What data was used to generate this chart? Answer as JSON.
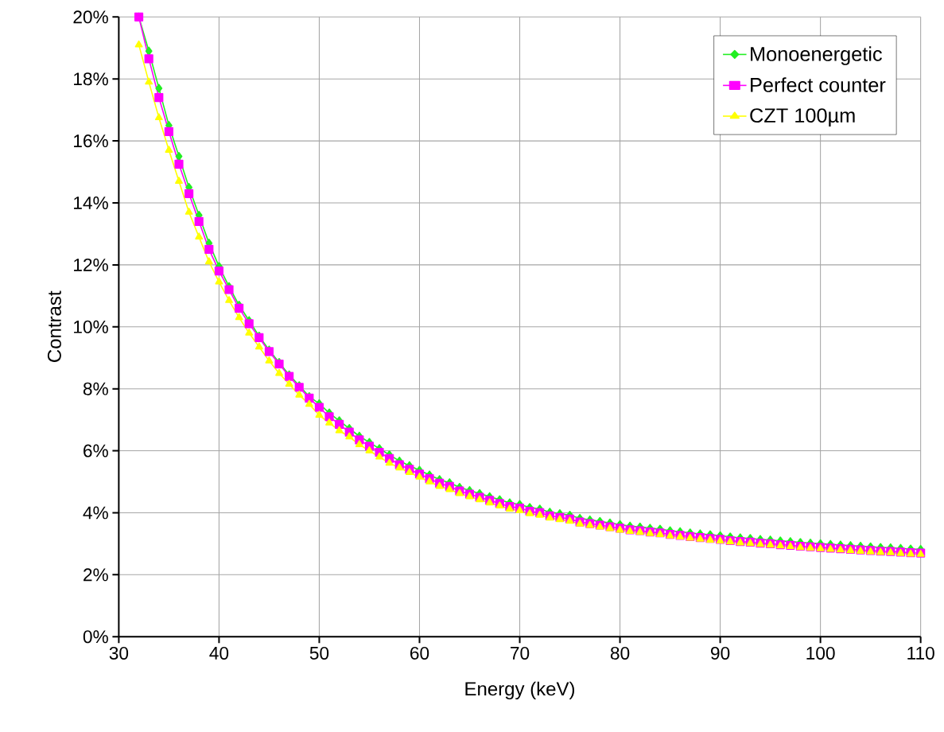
{
  "chart_data": {
    "type": "line",
    "xlabel": "Energy (keV)",
    "ylabel": "Contrast",
    "x": [
      32,
      33,
      34,
      35,
      36,
      37,
      38,
      39,
      40,
      41,
      42,
      43,
      44,
      45,
      46,
      47,
      48,
      49,
      50,
      51,
      52,
      53,
      54,
      55,
      56,
      57,
      58,
      59,
      60,
      61,
      62,
      63,
      64,
      65,
      66,
      67,
      68,
      69,
      70,
      71,
      72,
      73,
      74,
      75,
      76,
      77,
      78,
      79,
      80,
      81,
      82,
      83,
      84,
      85,
      86,
      87,
      88,
      89,
      90,
      91,
      92,
      93,
      94,
      95,
      96,
      97,
      98,
      99,
      100,
      101,
      102,
      103,
      104,
      105,
      106,
      107,
      108,
      109,
      110
    ],
    "series": [
      {
        "name": "Monoenergetic",
        "color": "#22ee22",
        "marker": "diamond",
        "values": [
          20.0,
          18.9,
          17.7,
          16.5,
          15.5,
          14.5,
          13.6,
          12.7,
          11.95,
          11.3,
          10.7,
          10.2,
          9.7,
          9.25,
          8.85,
          8.45,
          8.1,
          7.75,
          7.52,
          7.22,
          6.97,
          6.72,
          6.47,
          6.27,
          6.07,
          5.87,
          5.67,
          5.52,
          5.37,
          5.22,
          5.07,
          4.97,
          4.82,
          4.72,
          4.62,
          4.52,
          4.42,
          4.32,
          4.27,
          4.17,
          4.12,
          4.02,
          3.97,
          3.92,
          3.82,
          3.77,
          3.72,
          3.67,
          3.62,
          3.57,
          3.54,
          3.5,
          3.47,
          3.42,
          3.39,
          3.35,
          3.32,
          3.29,
          3.26,
          3.22,
          3.19,
          3.17,
          3.14,
          3.12,
          3.09,
          3.07,
          3.04,
          3.02,
          3.0,
          2.98,
          2.96,
          2.94,
          2.92,
          2.9,
          2.88,
          2.87,
          2.85,
          2.83,
          2.82
        ]
      },
      {
        "name": "Perfect counter",
        "color": "#ff00ff",
        "marker": "square",
        "values": [
          20.0,
          18.65,
          17.4,
          16.3,
          15.25,
          14.3,
          13.4,
          12.5,
          11.8,
          11.2,
          10.6,
          10.1,
          9.65,
          9.2,
          8.8,
          8.4,
          8.05,
          7.7,
          7.4,
          7.1,
          6.85,
          6.6,
          6.35,
          6.15,
          5.95,
          5.75,
          5.55,
          5.4,
          5.25,
          5.1,
          4.95,
          4.85,
          4.7,
          4.6,
          4.5,
          4.4,
          4.3,
          4.2,
          4.15,
          4.05,
          4.0,
          3.9,
          3.85,
          3.8,
          3.7,
          3.65,
          3.6,
          3.55,
          3.5,
          3.45,
          3.42,
          3.38,
          3.35,
          3.3,
          3.27,
          3.23,
          3.2,
          3.17,
          3.14,
          3.1,
          3.07,
          3.05,
          3.02,
          3.0,
          2.97,
          2.95,
          2.92,
          2.9,
          2.88,
          2.86,
          2.84,
          2.82,
          2.8,
          2.78,
          2.76,
          2.75,
          2.73,
          2.71,
          2.7
        ]
      },
      {
        "name": "CZT 100µm",
        "color": "#ffff00",
        "marker": "triangle",
        "values": [
          19.1,
          17.9,
          16.75,
          15.7,
          14.7,
          13.7,
          12.9,
          12.1,
          11.45,
          10.85,
          10.3,
          9.8,
          9.35,
          8.9,
          8.5,
          8.15,
          7.8,
          7.5,
          7.15,
          6.9,
          6.65,
          6.45,
          6.2,
          6.0,
          5.8,
          5.6,
          5.45,
          5.3,
          5.15,
          5.0,
          4.85,
          4.75,
          4.62,
          4.52,
          4.42,
          4.32,
          4.22,
          4.12,
          4.07,
          3.97,
          3.92,
          3.83,
          3.78,
          3.73,
          3.64,
          3.59,
          3.54,
          3.49,
          3.44,
          3.4,
          3.37,
          3.33,
          3.3,
          3.25,
          3.22,
          3.18,
          3.15,
          3.12,
          3.09,
          3.06,
          3.03,
          3.01,
          2.98,
          2.96,
          2.93,
          2.91,
          2.88,
          2.86,
          2.84,
          2.82,
          2.8,
          2.78,
          2.76,
          2.74,
          2.72,
          2.71,
          2.69,
          2.67,
          2.66
        ]
      }
    ],
    "xlim": [
      30,
      110
    ],
    "ylim": [
      0,
      20
    ],
    "xticks": [
      30,
      40,
      50,
      60,
      70,
      80,
      90,
      100,
      110
    ],
    "yticks": [
      {
        "value": 0,
        "label": "0%"
      },
      {
        "value": 2,
        "label": "2%"
      },
      {
        "value": 4,
        "label": "4%"
      },
      {
        "value": 6,
        "label": "6%"
      },
      {
        "value": 8,
        "label": "8%"
      },
      {
        "value": 10,
        "label": "10%"
      },
      {
        "value": 12,
        "label": "12%"
      },
      {
        "value": 14,
        "label": "14%"
      },
      {
        "value": 16,
        "label": "16%"
      },
      {
        "value": 18,
        "label": "18%"
      },
      {
        "value": 20,
        "label": "20%"
      }
    ],
    "grid": true,
    "legend": "top right"
  }
}
